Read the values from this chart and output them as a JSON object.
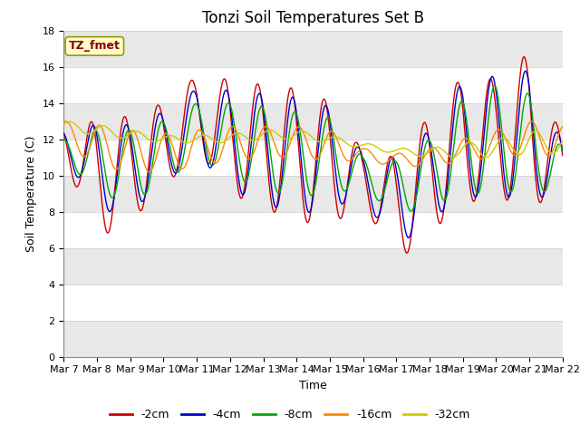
{
  "title": "Tonzi Soil Temperatures Set B",
  "xlabel": "Time",
  "ylabel": "Soil Temperature (C)",
  "ylim": [
    0,
    18
  ],
  "x_tick_labels": [
    "Mar 7",
    "Mar 8",
    "Mar 9",
    "Mar 10",
    "Mar 11",
    "Mar 12",
    "Mar 13",
    "Mar 14",
    "Mar 15",
    "Mar 16",
    "Mar 17",
    "Mar 18",
    "Mar 19",
    "Mar 20",
    "Mar 21",
    "Mar 22"
  ],
  "legend_label": "TZ_fmet",
  "series_labels": [
    "-2cm",
    "-4cm",
    "-8cm",
    "-16cm",
    "-32cm"
  ],
  "series_colors": [
    "#cc0000",
    "#0000cc",
    "#00aa00",
    "#ff8800",
    "#cccc00"
  ],
  "background_color": "#ffffff",
  "plot_bg_white": "#ffffff",
  "plot_bg_gray": "#e8e8e8",
  "grid_line_color": "#cccccc",
  "title_fontsize": 12,
  "axis_fontsize": 9,
  "tick_fontsize": 8,
  "legend_label_color": "#8b0000",
  "legend_bg": "#ffffcc",
  "legend_border": "#999900",
  "band_gray_ranges": [
    [
      0,
      2
    ],
    [
      4,
      6
    ],
    [
      8,
      10
    ],
    [
      12,
      14
    ],
    [
      16,
      18
    ]
  ],
  "band_white_ranges": [
    [
      2,
      4
    ],
    [
      6,
      8
    ],
    [
      10,
      12
    ],
    [
      14,
      16
    ]
  ]
}
